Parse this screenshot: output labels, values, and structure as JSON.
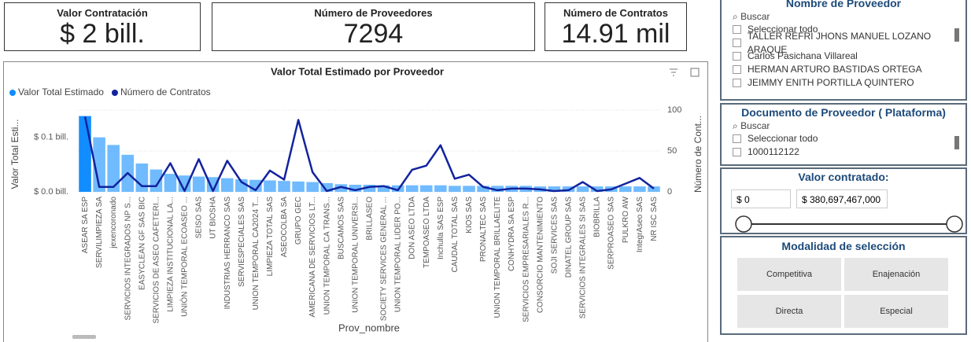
{
  "cards": [
    {
      "title": "Valor Contratación",
      "value": "$ 2 bill."
    },
    {
      "title": "Número de Proveedores",
      "value": "7294"
    },
    {
      "title": "Número de Contratos",
      "value": "14.91 mil"
    }
  ],
  "chart_data": {
    "type": "combo",
    "title": "Valor Total Estimado por Proveedor",
    "x_label": "Prov_nombre",
    "y_label": "Valor Total Esti...",
    "y2_label": "Número de Cont...",
    "categories": [
      "ASEAR SA ESP",
      "SERVILIMPIEZA SA",
      "jexencoronado",
      "SERVICIOS INTEGRADOS NP S...",
      "EASYCLEAN GF SAS BIC",
      "SERVICIOS DE ASEO CAFETERI...",
      "LIMPIEZA INSTITUCIONAL LA...",
      "UNIÓN TEMPORAL ECOASEO ...",
      "SEISO SAS",
      "UT BIOSHA",
      "INDUSTRIAS HERRANCO SAS",
      "SERVIESPECIALES SAS",
      "UNION TEMPORAL CA2024 T...",
      "LIMPIEZA TOTAL SAS",
      "ASEOCOLBA SA",
      "GRUPO GEC",
      "AMERICANA DE SERVICIOS LT...",
      "UNION TEMPORAL CA TRANS...",
      "BUSCAMOS SAS",
      "UNION TEMPORAL UNIVERSI...",
      "BRILLASEO",
      "SOCIETY SERVICES GENERAL ...",
      "UNION TEMPORAL LIDER PO...",
      "DON ASEO LTDA",
      "TEMPOASEO LTDA",
      "Inchulla SAS ESP",
      "CAUDAL TOTAL SAS",
      "KIOS SAS",
      "PRONALTEC SAS",
      "UNION TEMPORAL BRILLAELITE",
      "CONHYDRA SA ESP",
      "SERVICIOS EMPRESARIALES R...",
      "CONSORCIO MANTENIMIENTO",
      "SOJI SERVICES SAS",
      "DINATEL GROUP SAS",
      "SERVICIOS INTEGRALES SI SAS",
      "BIOBRILLA",
      "SERPROASEO SAS",
      "PULKRO AW",
      "IntegrAseo SAS",
      "NR ISC SAS"
    ],
    "series": [
      {
        "name": "Valor Total Estimado",
        "type": "bar",
        "color": "#118dff",
        "values": [
          0.139,
          0.1,
          0.086,
          0.068,
          0.052,
          0.041,
          0.033,
          0.03,
          0.028,
          0.027,
          0.025,
          0.023,
          0.022,
          0.021,
          0.02,
          0.019,
          0.018,
          0.016,
          0.014,
          0.013,
          0.013,
          0.012,
          0.012,
          0.012,
          0.012,
          0.012,
          0.011,
          0.011,
          0.011,
          0.011,
          0.011,
          0.011,
          0.01,
          0.01,
          0.01,
          0.01,
          0.01,
          0.01,
          0.01,
          0.01,
          0.01
        ]
      },
      {
        "name": "Número de Contratos",
        "type": "line",
        "axis": "y2",
        "color": "#12239e",
        "values": [
          92,
          6,
          6,
          23,
          7,
          7,
          35,
          1,
          40,
          1,
          38,
          12,
          2,
          26,
          15,
          88,
          24,
          1,
          6,
          2,
          6,
          7,
          2,
          27,
          32,
          57,
          16,
          21,
          6,
          2,
          4,
          4,
          3,
          1,
          2,
          12,
          1,
          3,
          10,
          17,
          4
        ]
      }
    ],
    "ylim": [
      0,
      0.15
    ],
    "yticks": [
      {
        "value": 0,
        "label": "$ 0.0 bill."
      },
      {
        "value": 0.1,
        "label": "$ 0.1 bill."
      }
    ],
    "y2lim": [
      0,
      100
    ],
    "y2ticks": [
      0,
      50,
      100
    ],
    "grid": true,
    "legend": "top-left"
  },
  "slicers": {
    "proveedor": {
      "title": "Nombre de Proveedor",
      "search": "Buscar",
      "items": [
        "Seleccionar todo",
        "TALLER REFRI JHONS MANUEL LOZANO ARAQUE",
        "Carlos Pasichana Villareal",
        "HERMAN ARTURO BASTIDAS ORTEGA",
        "JEIMMY ENITH PORTILLA QUINTERO"
      ]
    },
    "documento": {
      "title": "Documento de Proveedor ( Plataforma)",
      "search": "Buscar",
      "items": [
        "Seleccionar todo",
        "1000112122"
      ]
    },
    "valor": {
      "title": "Valor contratado:",
      "min": "$ 0",
      "max": "$ 380,697,467,000"
    },
    "modalidad": {
      "title": "Modalidad de selección",
      "options": [
        "Competitiva",
        "Enajenación",
        "Directa",
        "Especial"
      ]
    }
  }
}
